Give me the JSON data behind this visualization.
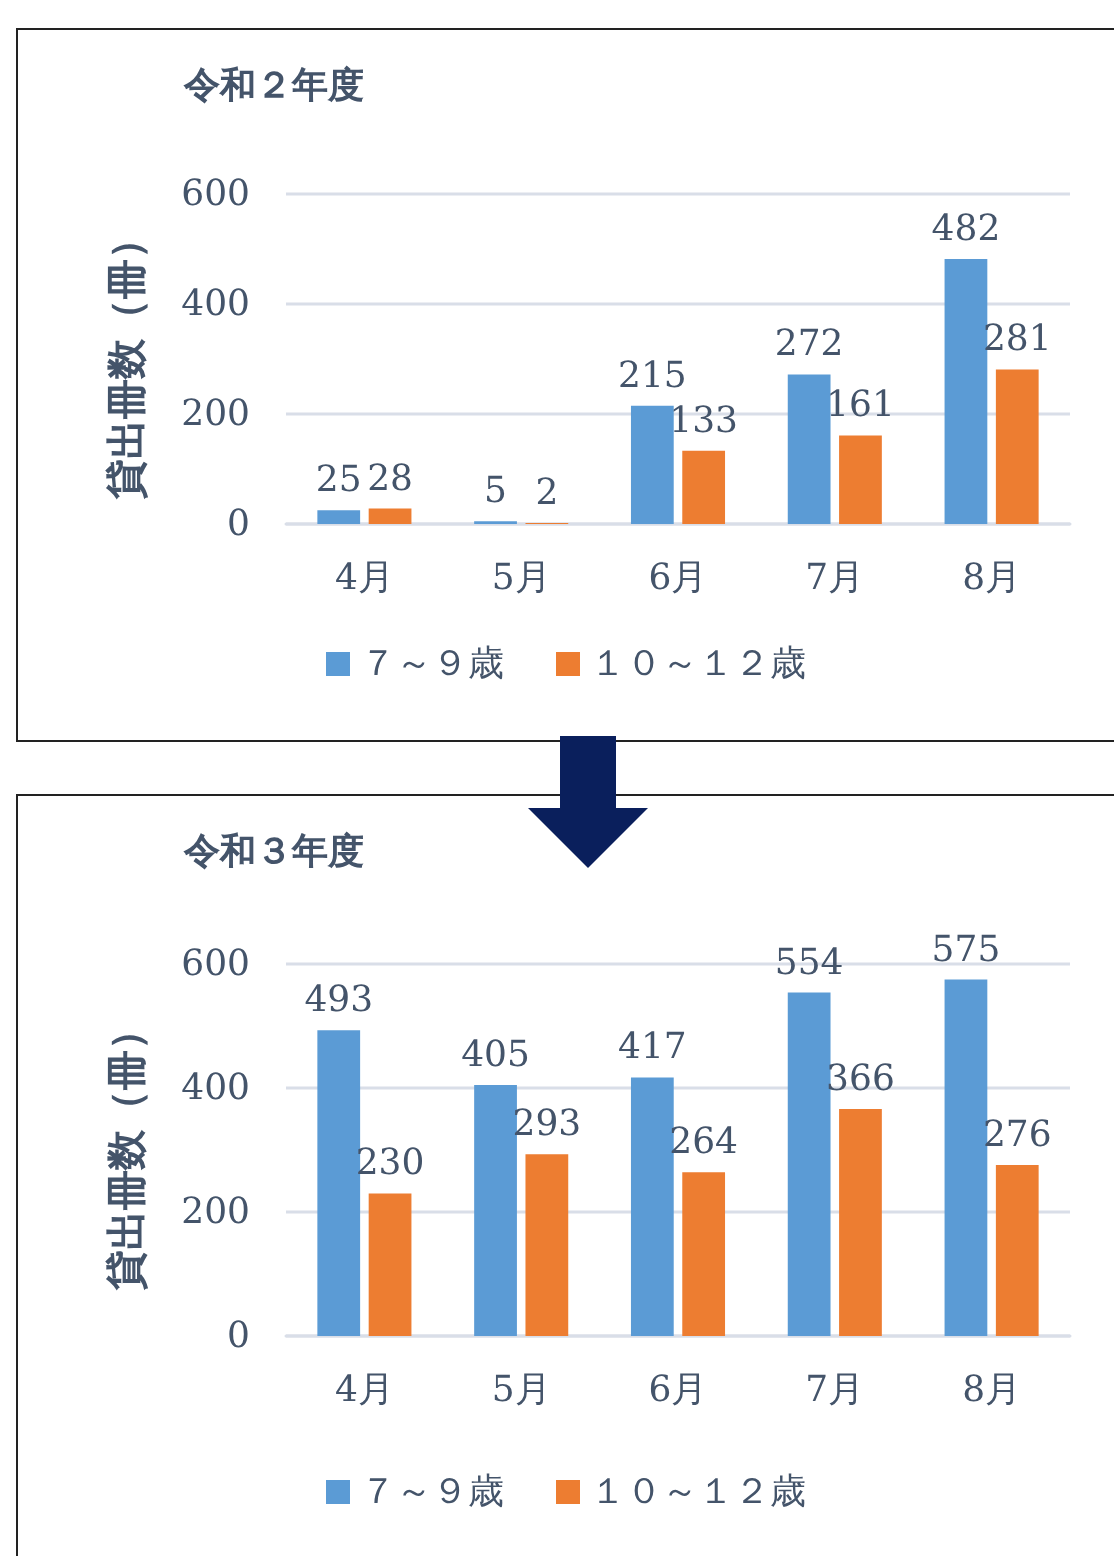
{
  "chart_data": [
    {
      "type": "bar",
      "title": "令和２年度",
      "ylabel": "貸出冊数（冊）",
      "categories": [
        "4月",
        "5月",
        "6月",
        "7月",
        "8月"
      ],
      "series": [
        {
          "name": "７～９歳",
          "color": "#5b9bd5",
          "values": [
            25,
            5,
            215,
            272,
            482
          ]
        },
        {
          "name": "１０～１２歳",
          "color": "#ed7d31",
          "values": [
            28,
            2,
            133,
            161,
            281
          ]
        }
      ],
      "ylim": [
        0,
        600
      ],
      "yticks": [
        0,
        200,
        400,
        600
      ],
      "grid": "y",
      "legend": "bottom",
      "data_labels": true
    },
    {
      "type": "bar",
      "title": "令和３年度",
      "ylabel": "貸出冊数（冊）",
      "categories": [
        "4月",
        "5月",
        "6月",
        "7月",
        "8月"
      ],
      "series": [
        {
          "name": "７～９歳",
          "color": "#5b9bd5",
          "values": [
            493,
            405,
            417,
            554,
            575
          ]
        },
        {
          "name": "１０～１２歳",
          "color": "#ed7d31",
          "values": [
            230,
            293,
            264,
            366,
            276
          ]
        }
      ],
      "ylim": [
        0,
        600
      ],
      "yticks": [
        0,
        200,
        400,
        600
      ],
      "grid": "y",
      "legend": "bottom",
      "data_labels": true
    }
  ]
}
